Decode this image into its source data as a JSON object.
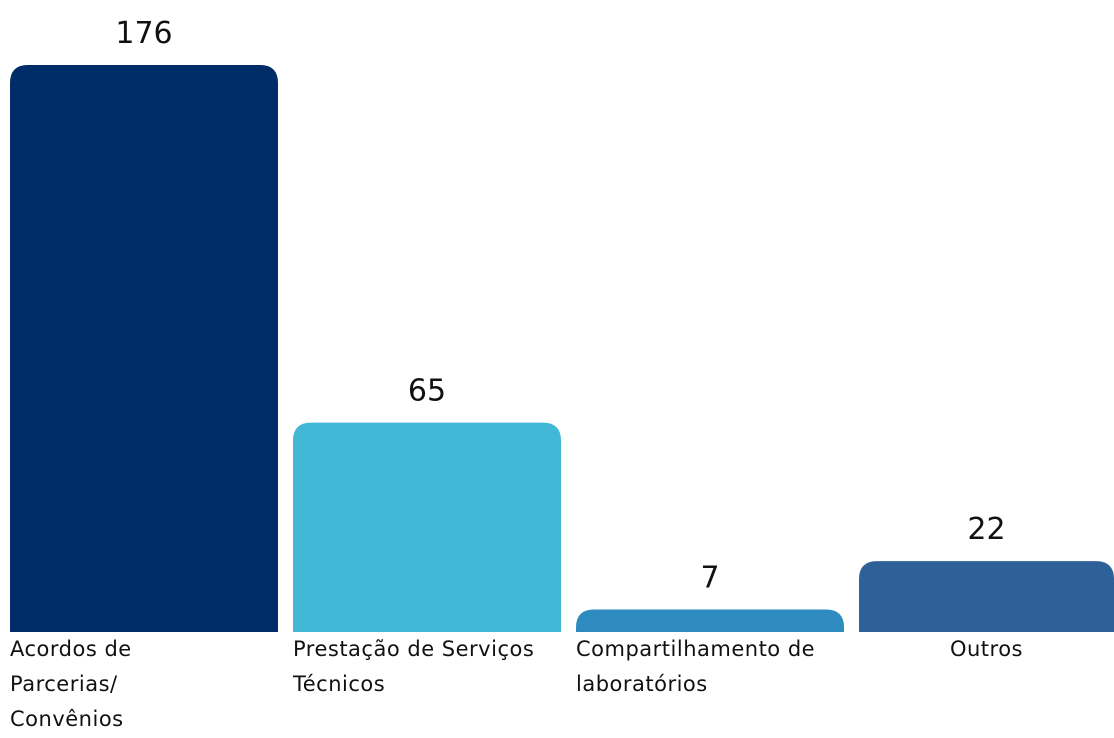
{
  "chart_data": {
    "type": "bar",
    "categories": [
      "Acordos de Parcerias/ Convênios",
      "Prestação de Serviços Técnicos",
      "Compartilhamento de laboratórios",
      "Outros"
    ],
    "values": [
      176,
      65,
      7,
      22
    ],
    "colors": [
      "#002d67",
      "#42b8d6",
      "#2e8bbf",
      "#2f6199"
    ]
  }
}
